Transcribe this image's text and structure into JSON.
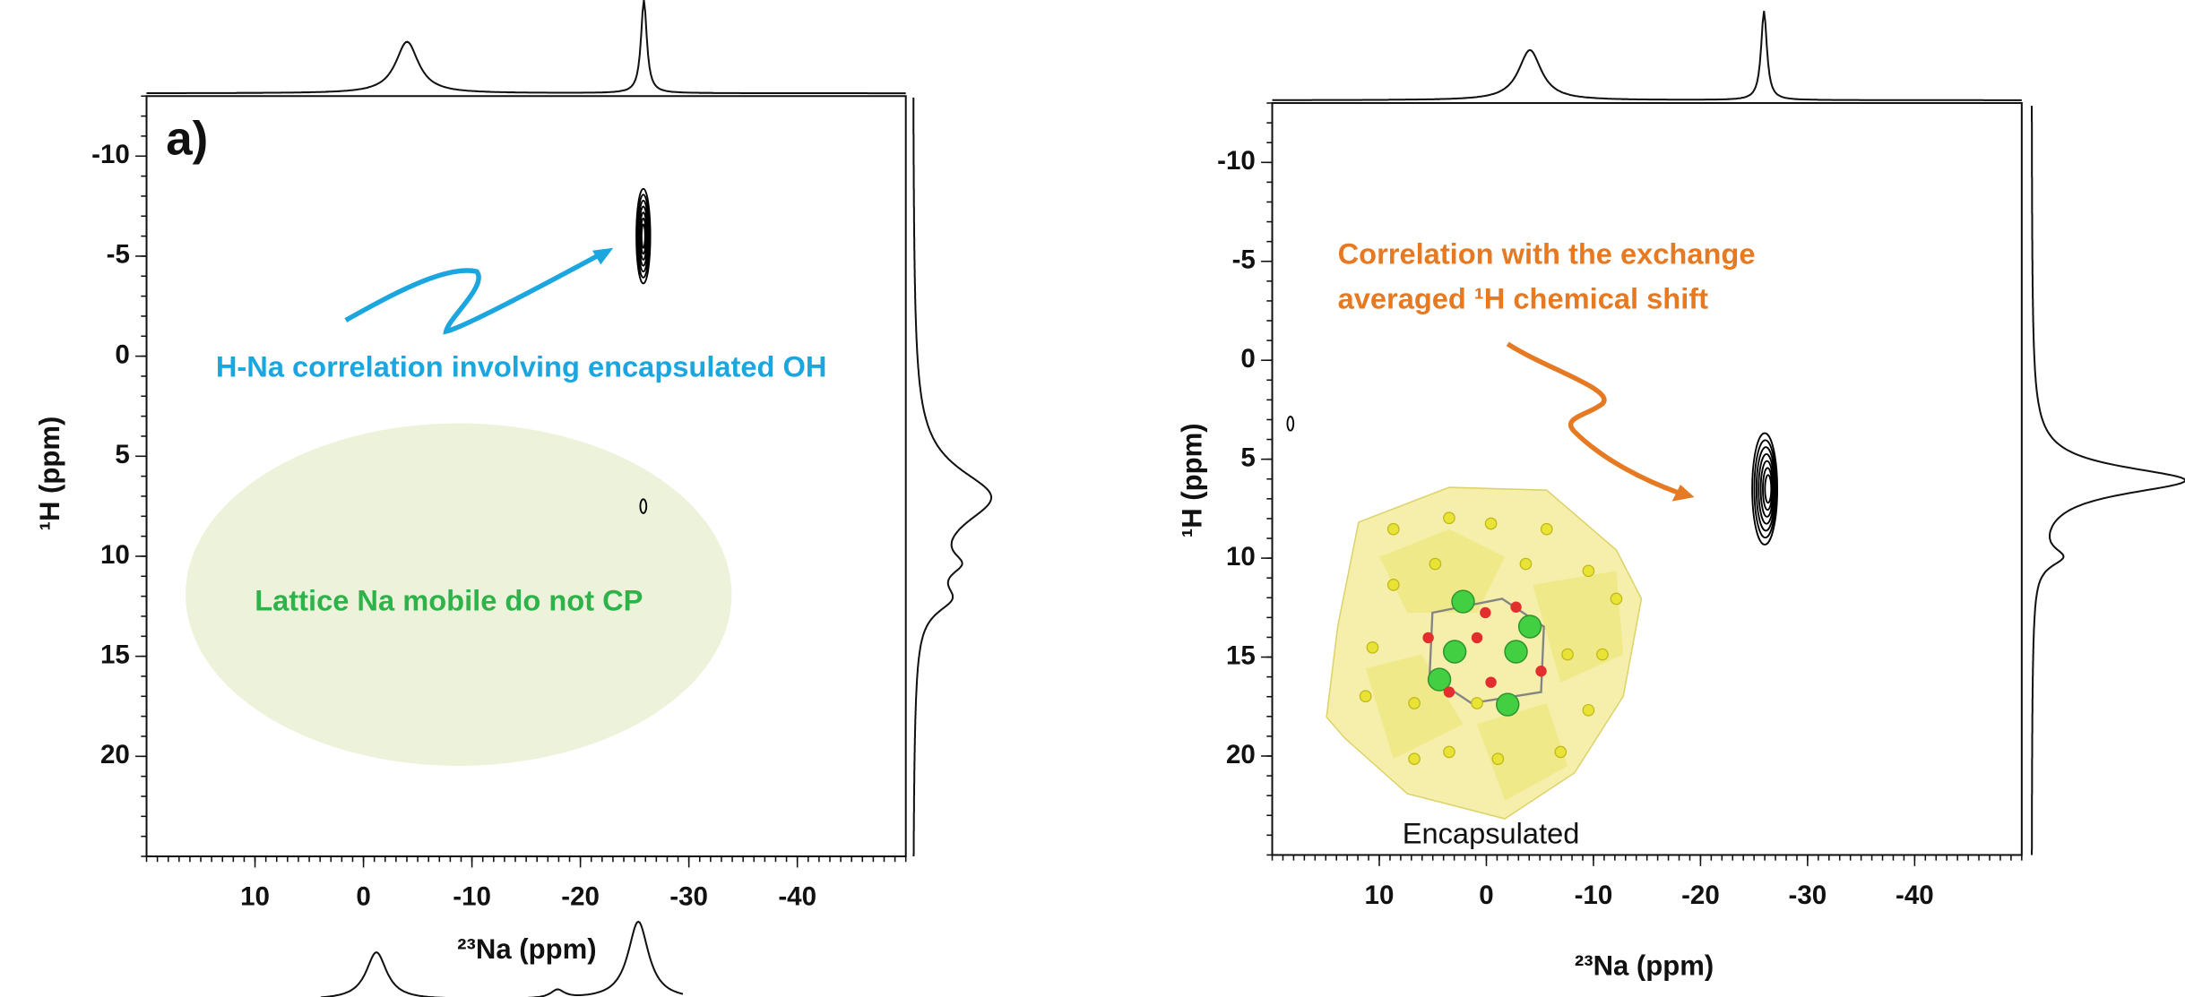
{
  "chart_data": [
    {
      "type": "contour",
      "panel_label": "a)",
      "xlabel": "²³Na (ppm)",
      "ylabel": "¹H (ppm)",
      "xlim": [
        20,
        -50
      ],
      "ylim": [
        -13,
        25
      ],
      "xticks": [
        10,
        0,
        -10,
        -20,
        -30,
        -40
      ],
      "yticks": [
        -10,
        -5,
        0,
        5,
        10,
        15,
        20
      ],
      "x": [
        -25.8,
        -25.8
      ],
      "values": [
        -6,
        7.5
      ],
      "color": "#000000",
      "annotations": [
        {
          "text": "H-Na correlation involving encapsulated OH",
          "color": "#1ba6df"
        },
        {
          "text": "Lattice Na mobile do not CP",
          "color": "#2eb34b"
        }
      ]
    },
    {
      "type": "contour",
      "xlabel": "²³Na (ppm)",
      "ylabel": "¹H (ppm)",
      "xlim": [
        20,
        -50
      ],
      "ylim": [
        -13,
        25
      ],
      "xticks": [
        10,
        0,
        -10,
        -20,
        -30,
        -40
      ],
      "yticks": [
        -10,
        -5,
        0,
        5,
        10,
        15,
        20
      ],
      "x": [
        18.3,
        -26
      ],
      "values": [
        3.2,
        6.5
      ],
      "color": "#000000",
      "annotations": [
        {
          "text": "Correlation with the exchange",
          "color": "#e67a22"
        },
        {
          "text": "averaged ¹H chemical shift",
          "color": "#e67a22"
        },
        {
          "text": "Encapsulated",
          "color": "#111111"
        }
      ]
    }
  ]
}
